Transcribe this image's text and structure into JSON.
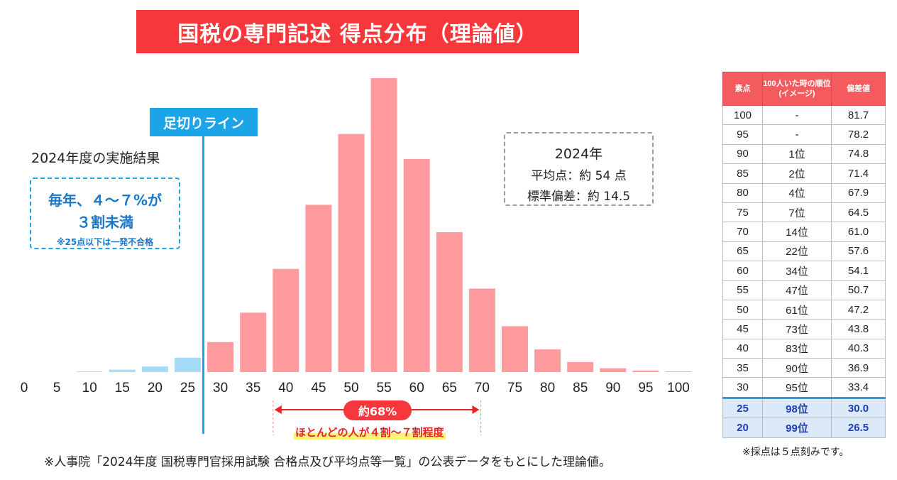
{
  "title": "国税の専門記述 得点分布（理論値）",
  "cutoff_label": "足切りライン",
  "result_caption": "2024年度の実施結果",
  "blue_note": {
    "line1": "毎年、４～７%が",
    "line2": "３割未満",
    "line3": "※25点以下は一発不合格"
  },
  "stats_box": {
    "year": "2024年",
    "mean": "平均点：約 54 点",
    "sd": "標準偏差：約 14.5"
  },
  "range_badge": "約68%",
  "range_caption": "ほとんどの人が４割～７割程度",
  "footnote": "※人事院「2024年度 国税専門官採用試験 合格点及び平均点等一覧」の公表データをもとにした理論値。",
  "table_note": "※採点は５点刻みです。",
  "colors": {
    "below_cutoff": "#a6dbf7",
    "above_cutoff": "#ff9b9f",
    "accent_red": "#f6373b",
    "accent_blue": "#1ba4e8"
  },
  "chart_data": {
    "type": "bar",
    "categories": [
      "0",
      "5",
      "10",
      "15",
      "20",
      "25",
      "30",
      "35",
      "40",
      "45",
      "50",
      "55",
      "60",
      "65",
      "70",
      "75",
      "80",
      "85",
      "90",
      "95",
      "100"
    ],
    "values": [
      0,
      0,
      0.2,
      0.8,
      1.9,
      4.9,
      10.2,
      20.2,
      35.1,
      56.9,
      81.0,
      100,
      72.5,
      47.6,
      28.4,
      15.6,
      7.7,
      3.4,
      1.3,
      0.5,
      0.2
    ],
    "cutoff": 27.5,
    "range": [
      40,
      70
    ],
    "ylim": [
      0,
      100
    ],
    "xlabel": "",
    "ylabel": ""
  },
  "table": {
    "headers": [
      "素点",
      "100人いた時の順位(イメージ)",
      "偏差値"
    ],
    "rows": [
      [
        "100",
        "-",
        "81.7"
      ],
      [
        "95",
        "-",
        "78.2"
      ],
      [
        "90",
        "1位",
        "74.8"
      ],
      [
        "85",
        "2位",
        "71.4"
      ],
      [
        "80",
        "4位",
        "67.9"
      ],
      [
        "75",
        "7位",
        "64.5"
      ],
      [
        "70",
        "14位",
        "61.0"
      ],
      [
        "65",
        "22位",
        "57.6"
      ],
      [
        "60",
        "34位",
        "54.1"
      ],
      [
        "55",
        "47位",
        "50.7"
      ],
      [
        "50",
        "61位",
        "47.2"
      ],
      [
        "45",
        "73位",
        "43.8"
      ],
      [
        "40",
        "83位",
        "40.3"
      ],
      [
        "35",
        "90位",
        "36.9"
      ],
      [
        "30",
        "95位",
        "33.4"
      ],
      [
        "25",
        "98位",
        "30.0"
      ],
      [
        "20",
        "99位",
        "26.5"
      ]
    ],
    "highlight_rows": [
      15,
      16
    ]
  }
}
